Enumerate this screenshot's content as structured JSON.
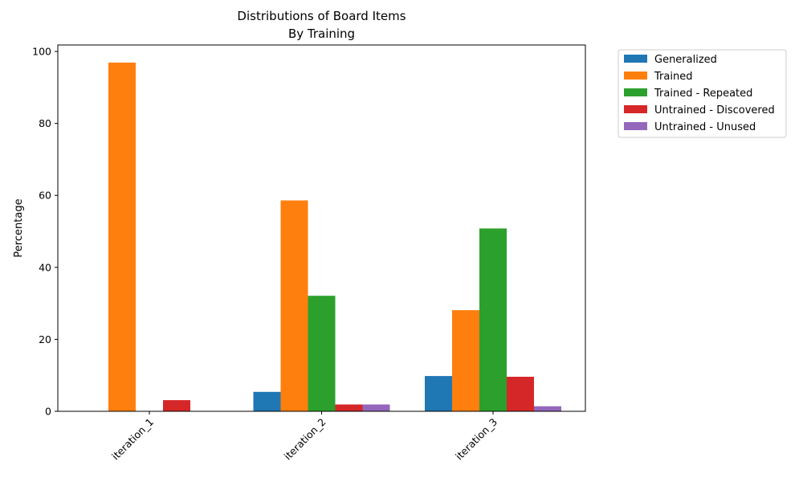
{
  "chart_data": {
    "type": "bar",
    "title": "Distributions of Board Items",
    "subtitle": "By Training",
    "xlabel": "",
    "ylabel": "Percentage",
    "categories": [
      "iteration_1",
      "iteration_2",
      "iteration_3"
    ],
    "ylim": [
      0,
      101.8
    ],
    "yticks": [
      0,
      20,
      40,
      60,
      80,
      100
    ],
    "grid": false,
    "legend_position": "outside-top-right",
    "series": [
      {
        "name": "Generalized",
        "color": "#1f77b4",
        "values": [
          0,
          5.4,
          9.8
        ]
      },
      {
        "name": "Trained",
        "color": "#ff7f0e",
        "values": [
          96.9,
          58.6,
          28.1
        ]
      },
      {
        "name": "Trained - Repeated",
        "color": "#2ca02c",
        "values": [
          0,
          32.1,
          50.8
        ]
      },
      {
        "name": "Untrained - Discovered",
        "color": "#d62728",
        "values": [
          3.1,
          1.9,
          9.6
        ]
      },
      {
        "name": "Untrained - Unused",
        "color": "#9467bd",
        "values": [
          0,
          1.9,
          1.4
        ]
      }
    ]
  }
}
